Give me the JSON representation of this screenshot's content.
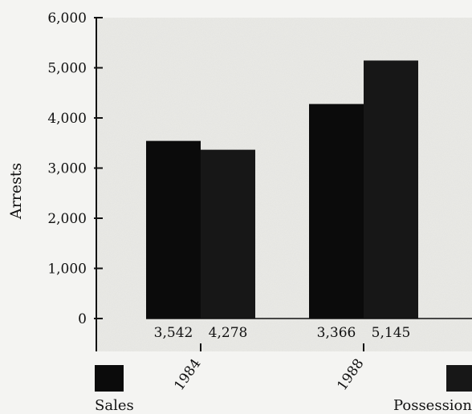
{
  "chart_data": {
    "type": "bar",
    "title": "",
    "xlabel": "",
    "ylabel": "Arrests",
    "categories": [
      "1984",
      "1988"
    ],
    "series": [
      {
        "name": "Sales",
        "values": [
          3542,
          4278
        ],
        "color": "#0b0b0b"
      },
      {
        "name": "Possession",
        "values": [
          3366,
          5145
        ],
        "color": "#171717"
      }
    ],
    "data_labels": [
      [
        "3,542",
        "4,278"
      ],
      [
        "3,366",
        "5,145"
      ]
    ],
    "ylim": [
      0,
      6000
    ],
    "yticks": [
      "0",
      "1,000",
      "2,000",
      "3,000",
      "4,000",
      "5,000",
      "6,000"
    ],
    "grid": false,
    "legend": "bottom",
    "plot_background": "#e6e6e2",
    "page_background": "#f4f4f2"
  }
}
